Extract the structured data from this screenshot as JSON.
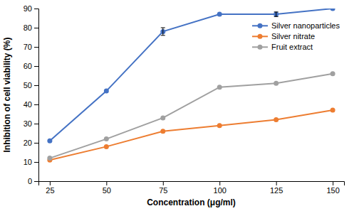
{
  "chart_data": {
    "type": "line",
    "xlabel": "Concentration (μg/ml)",
    "ylabel": "Inhibition of cell viability (%)",
    "x": [
      25,
      50,
      75,
      100,
      125,
      150
    ],
    "series": [
      {
        "name": "Silver nanoparticles",
        "color": "#4472C4",
        "values": [
          21,
          47,
          78,
          87,
          87,
          90
        ],
        "errors": [
          null,
          null,
          2.0,
          null,
          1.2,
          null
        ]
      },
      {
        "name": "Silver nitrate",
        "color": "#ED7D31",
        "values": [
          11,
          18,
          26,
          29,
          32,
          37
        ]
      },
      {
        "name": "Fruit extract",
        "color": "#A0A0A0",
        "values": [
          12,
          22,
          33,
          49,
          51,
          56
        ]
      }
    ],
    "xlim": [
      20,
      155
    ],
    "ylim": [
      0,
      90
    ],
    "xticks": [
      25,
      50,
      75,
      100,
      125,
      150
    ],
    "yticks": [
      0,
      10,
      20,
      30,
      40,
      50,
      60,
      70,
      80,
      90
    ],
    "marker": "circle",
    "grid": false,
    "legend": "upper right"
  }
}
